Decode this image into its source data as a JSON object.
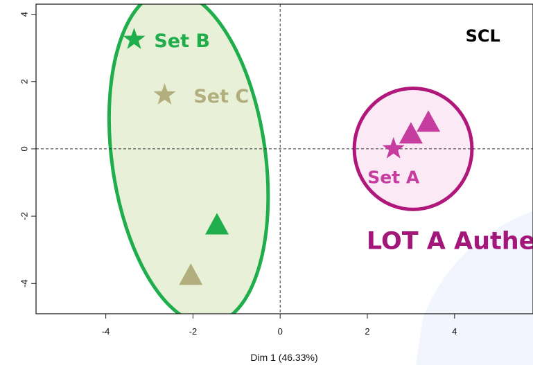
{
  "chart_data": {
    "type": "scatter",
    "title": "",
    "xlabel": "Dim 1 (46.33%)",
    "ylabel": "",
    "xlim": [
      -5.6,
      5.8
    ],
    "ylim": [
      -4.9,
      4.3
    ],
    "x_ticks": [
      "-4",
      "-2",
      "0",
      "2",
      "4"
    ],
    "y_ticks": [
      "-4",
      "-2",
      "0",
      "2",
      "4"
    ],
    "reference_lines": {
      "x": 0,
      "y": 0,
      "style": "dashed"
    },
    "series": [
      {
        "marker": "star",
        "color": "#1fae4b",
        "points": [
          {
            "x": -3.35,
            "y": 3.25
          }
        ]
      },
      {
        "marker": "star",
        "color": "#b2ae7d",
        "points": [
          {
            "x": -2.65,
            "y": 1.6
          }
        ]
      },
      {
        "marker": "star",
        "color": "#c63da0",
        "points": [
          {
            "x": 2.6,
            "y": 0.0
          }
        ]
      },
      {
        "marker": "triangle",
        "color": "#c63da0",
        "points": [
          {
            "x": 3.0,
            "y": 0.4
          },
          {
            "x": 3.4,
            "y": 0.75
          }
        ]
      },
      {
        "marker": "triangle",
        "color": "#1fae4b",
        "points": [
          {
            "x": -1.45,
            "y": -2.3
          }
        ]
      },
      {
        "marker": "triangle",
        "color": "#b2ae7d",
        "points": [
          {
            "x": -2.05,
            "y": -3.8
          }
        ]
      }
    ],
    "ellipses": [
      {
        "cx": -2.1,
        "cy": -0.25,
        "rx": 1.76,
        "ry": 5.0,
        "rotate": -8,
        "stroke": "#1fae4b",
        "fill": "#e8f1d7"
      },
      {
        "cx": 3.05,
        "cy": 0.0,
        "rx": 1.35,
        "ry": 1.8,
        "rotate": 0,
        "stroke": "#b1177b",
        "fill": "#fbeaf6"
      }
    ],
    "annotations": [
      {
        "text": "Set B",
        "x": -2.25,
        "y": 3.2,
        "color": "#1fae4b",
        "size": 27
      },
      {
        "text": "Set C",
        "x": -1.35,
        "y": 1.55,
        "color": "#b2ae7d",
        "size": 27
      },
      {
        "text": "Set A",
        "x": 2.6,
        "y": -0.85,
        "color": "#c63da0",
        "size": 25
      },
      {
        "text": "SCL",
        "x": 4.65,
        "y": 3.35,
        "color": "#000000",
        "size": 24,
        "weight": "normal"
      },
      {
        "text": "LOT A Authent",
        "x": 4.25,
        "y": -2.75,
        "color": "#a3167a",
        "size": 35
      }
    ]
  }
}
